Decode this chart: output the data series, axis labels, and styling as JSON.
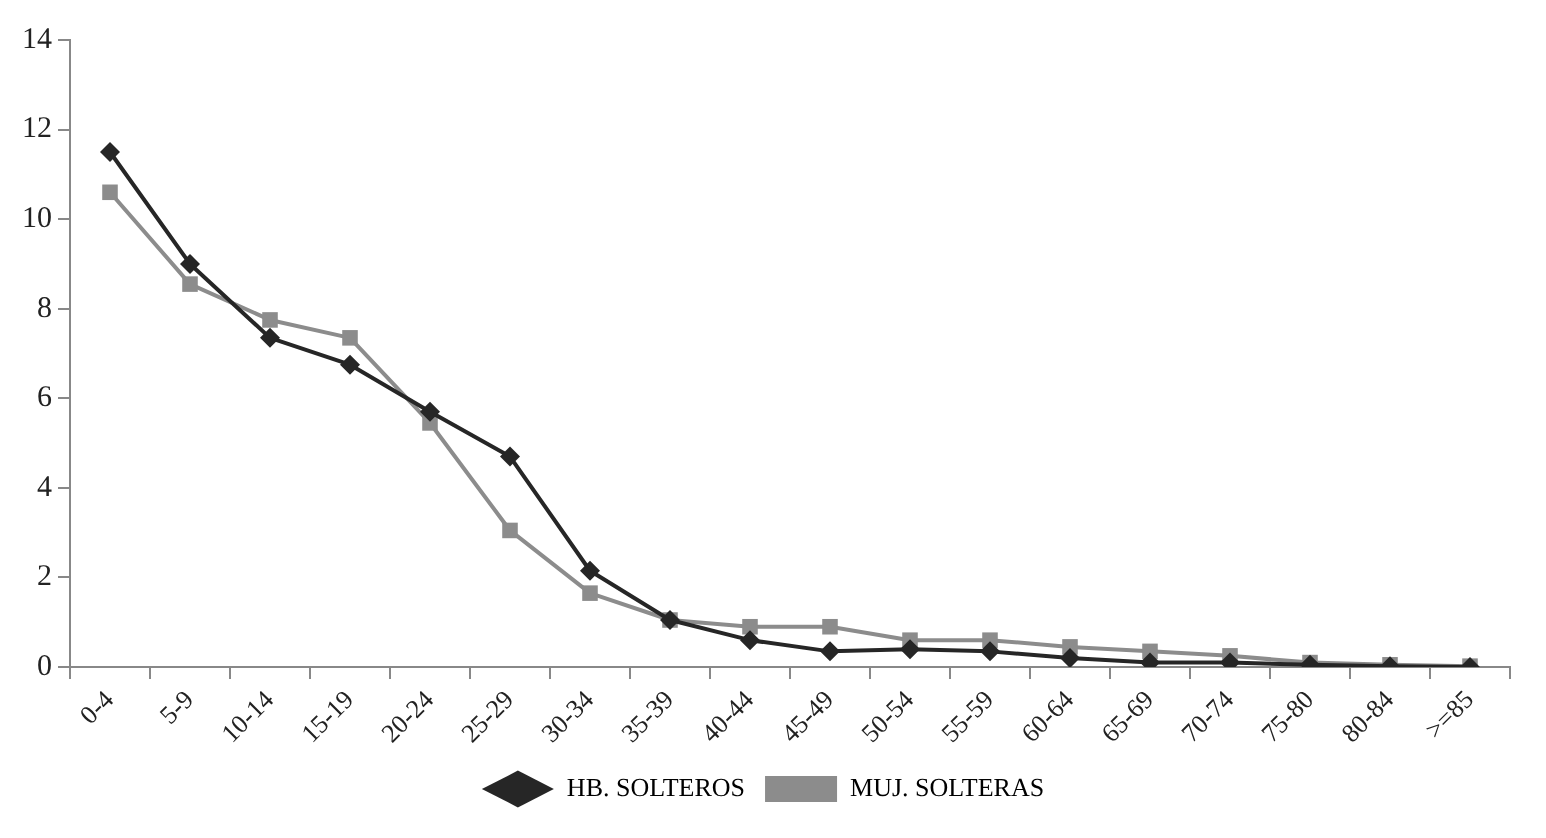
{
  "chart_data": {
    "type": "line",
    "categories": [
      "0-4",
      "5-9",
      "10-14",
      "15-19",
      "20-24",
      "25-29",
      "30-34",
      "35-39",
      "40-44",
      "45-49",
      "50-54",
      "55-59",
      "60-64",
      "65-69",
      "70-74",
      "75-80",
      "80-84",
      ">=85"
    ],
    "series": [
      {
        "name": "HB. SOLTEROS",
        "color": "#262626",
        "marker": "diamond",
        "values": [
          11.5,
          9.0,
          7.35,
          6.75,
          5.7,
          4.7,
          2.15,
          1.05,
          0.6,
          0.35,
          0.4,
          0.35,
          0.2,
          0.1,
          0.1,
          0.05,
          0.02,
          0.0
        ]
      },
      {
        "name": "MUJ. SOLTERAS",
        "color": "#8c8c8c",
        "marker": "square",
        "values": [
          10.6,
          8.55,
          7.75,
          7.35,
          5.45,
          3.05,
          1.65,
          1.05,
          0.9,
          0.9,
          0.6,
          0.6,
          0.45,
          0.35,
          0.25,
          0.1,
          0.05,
          0.02
        ]
      }
    ],
    "ylim": [
      0,
      14
    ],
    "yticks": [
      0,
      2,
      4,
      6,
      8,
      10,
      12,
      14
    ],
    "grid": false,
    "legend": "bottom"
  }
}
